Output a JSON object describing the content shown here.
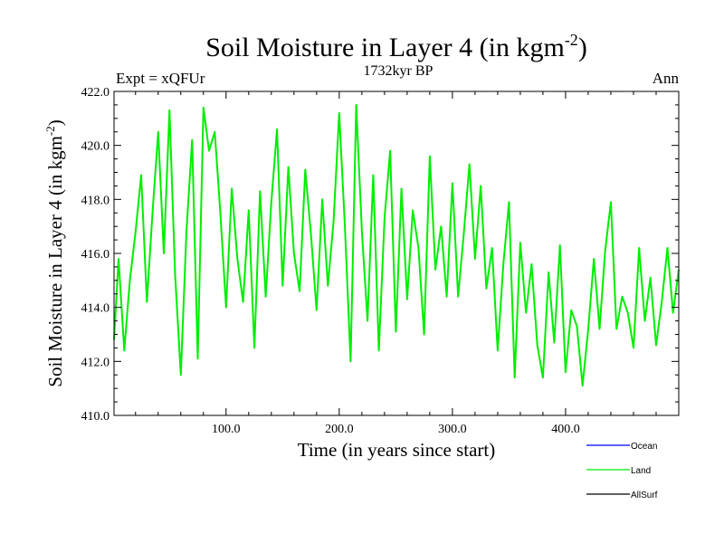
{
  "chart_data": {
    "type": "line",
    "title": "Soil Moisture in Layer 4 (in kgm",
    "title_sup": "-2",
    "title_end": ")",
    "subtitle": "1732kyr BP",
    "left_label": "Expt = xQFUr",
    "right_label": "Ann",
    "xlabel": "Time (in years since start)",
    "ylabel": "Soil Moisture in Layer 4 (in kgm",
    "ylabel_sup": "-2",
    "ylabel_end": ")",
    "xlim": [
      1,
      500
    ],
    "ylim": [
      410.0,
      422.0
    ],
    "xticks": [
      100,
      200,
      300,
      400
    ],
    "xtick_labels": [
      "100.0",
      "200.0",
      "300.0",
      "400.0"
    ],
    "yticks": [
      410,
      412,
      414,
      416,
      418,
      420,
      422
    ],
    "ytick_labels": [
      "410.0",
      "412.0",
      "414.0",
      "416.0",
      "418.0",
      "420.0",
      "422.0"
    ],
    "legend": [
      {
        "name": "Ocean",
        "color": "#0000ff"
      },
      {
        "name": "Land",
        "color": "#00ee00"
      },
      {
        "name": "AllSurf",
        "color": "#000000"
      }
    ],
    "series": [
      {
        "name": "Land",
        "color": "#00ee00",
        "x": [
          1,
          5,
          10,
          15,
          20,
          25,
          30,
          35,
          40,
          45,
          50,
          55,
          60,
          65,
          70,
          75,
          80,
          85,
          90,
          95,
          100,
          105,
          110,
          115,
          120,
          125,
          130,
          135,
          140,
          145,
          150,
          155,
          160,
          165,
          170,
          175,
          180,
          185,
          190,
          195,
          200,
          205,
          210,
          215,
          220,
          225,
          230,
          235,
          240,
          245,
          250,
          255,
          260,
          265,
          270,
          275,
          280,
          285,
          290,
          295,
          300,
          305,
          310,
          315,
          320,
          325,
          330,
          335,
          340,
          345,
          350,
          355,
          360,
          365,
          370,
          375,
          380,
          385,
          390,
          395,
          400,
          405,
          410,
          415,
          420,
          425,
          430,
          435,
          440,
          445,
          450,
          455,
          460,
          465,
          470,
          475,
          480,
          485,
          490,
          495,
          500
        ],
        "values": [
          412.8,
          415.8,
          412.4,
          415.0,
          416.8,
          418.9,
          414.2,
          417.5,
          420.5,
          416.0,
          421.3,
          415.2,
          411.5,
          416.8,
          420.2,
          412.1,
          421.4,
          419.8,
          420.5,
          417.5,
          414.0,
          418.4,
          415.8,
          414.2,
          417.6,
          412.5,
          418.3,
          414.4,
          417.9,
          420.6,
          414.8,
          419.2,
          416.0,
          414.6,
          419.1,
          416.7,
          413.9,
          418.0,
          414.8,
          417.2,
          421.2,
          417.0,
          412.0,
          421.5,
          416.8,
          413.5,
          418.9,
          412.4,
          417.3,
          419.8,
          413.1,
          418.4,
          414.3,
          417.6,
          416.2,
          413.0,
          419.6,
          415.4,
          417.0,
          414.4,
          418.6,
          414.4,
          416.7,
          419.3,
          415.8,
          418.5,
          414.7,
          416.2,
          412.4,
          415.6,
          417.9,
          411.4,
          416.4,
          413.8,
          415.6,
          412.6,
          411.4,
          415.3,
          412.7,
          416.3,
          411.6,
          413.9,
          413.3,
          411.1,
          413.2,
          415.8,
          413.2,
          416.1,
          417.9,
          413.2,
          414.4,
          413.8,
          412.5,
          416.2,
          413.5,
          415.1,
          412.6,
          414.2,
          416.2,
          413.8,
          415.4
        ]
      }
    ]
  }
}
